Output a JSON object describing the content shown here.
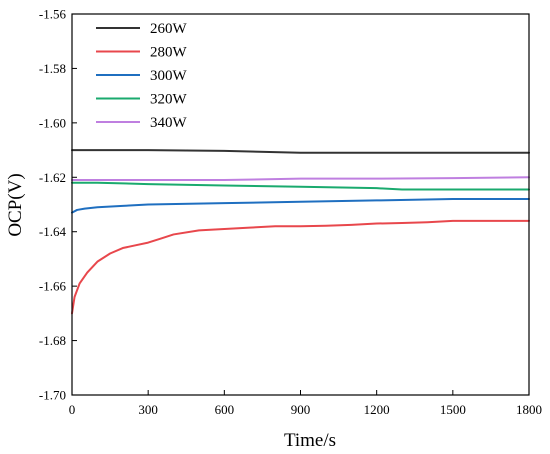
{
  "chart_data": {
    "type": "line",
    "title": "",
    "xlabel": "Time/s",
    "ylabel": "OCP(V)",
    "xlim": [
      0,
      1800
    ],
    "ylim": [
      -1.7,
      -1.56
    ],
    "xticks": [
      0,
      300,
      600,
      900,
      1200,
      1500,
      1800
    ],
    "yticks": [
      -1.7,
      -1.68,
      -1.66,
      -1.64,
      -1.62,
      -1.6,
      -1.58,
      -1.56
    ],
    "xtick_labels": [
      "0",
      "300",
      "600",
      "900",
      "1200",
      "1500",
      "1800"
    ],
    "ytick_labels": [
      "-1.70",
      "-1.68",
      "-1.66",
      "-1.64",
      "-1.62",
      "-1.60",
      "-1.58",
      "-1.56"
    ],
    "grid": false,
    "legend_position": "top-left",
    "series": [
      {
        "name": "260W",
        "color": "#333333",
        "x": [
          0,
          300,
          600,
          900,
          1200,
          1500,
          1800
        ],
        "y": [
          -1.61,
          -1.61,
          -1.6103,
          -1.611,
          -1.611,
          -1.611,
          -1.611
        ]
      },
      {
        "name": "280W",
        "color": "#e8474c",
        "x": [
          0,
          10,
          30,
          60,
          100,
          150,
          200,
          250,
          300,
          350,
          400,
          500,
          600,
          700,
          800,
          900,
          1000,
          1100,
          1200,
          1300,
          1400,
          1500,
          1600,
          1700,
          1800
        ],
        "y": [
          -1.67,
          -1.664,
          -1.659,
          -1.655,
          -1.651,
          -1.648,
          -1.646,
          -1.645,
          -1.644,
          -1.6425,
          -1.641,
          -1.6395,
          -1.639,
          -1.6385,
          -1.638,
          -1.638,
          -1.6378,
          -1.6375,
          -1.637,
          -1.6368,
          -1.6365,
          -1.636,
          -1.636,
          -1.636,
          -1.636
        ]
      },
      {
        "name": "300W",
        "color": "#1f6fc0",
        "x": [
          0,
          20,
          50,
          100,
          200,
          300,
          600,
          900,
          1200,
          1500,
          1800
        ],
        "y": [
          -1.633,
          -1.632,
          -1.6315,
          -1.631,
          -1.6305,
          -1.63,
          -1.6295,
          -1.629,
          -1.6285,
          -1.628,
          -1.628
        ]
      },
      {
        "name": "320W",
        "color": "#1aaa6e",
        "x": [
          0,
          100,
          300,
          600,
          900,
          1200,
          1300,
          1400,
          1500,
          1800
        ],
        "y": [
          -1.622,
          -1.622,
          -1.6225,
          -1.623,
          -1.6235,
          -1.624,
          -1.6245,
          -1.6245,
          -1.6245,
          -1.6245
        ]
      },
      {
        "name": "340W",
        "color": "#bf7fe0",
        "x": [
          0,
          300,
          600,
          900,
          1200,
          1500,
          1800
        ],
        "y": [
          -1.621,
          -1.621,
          -1.621,
          -1.6205,
          -1.6205,
          -1.6203,
          -1.62
        ]
      }
    ]
  }
}
